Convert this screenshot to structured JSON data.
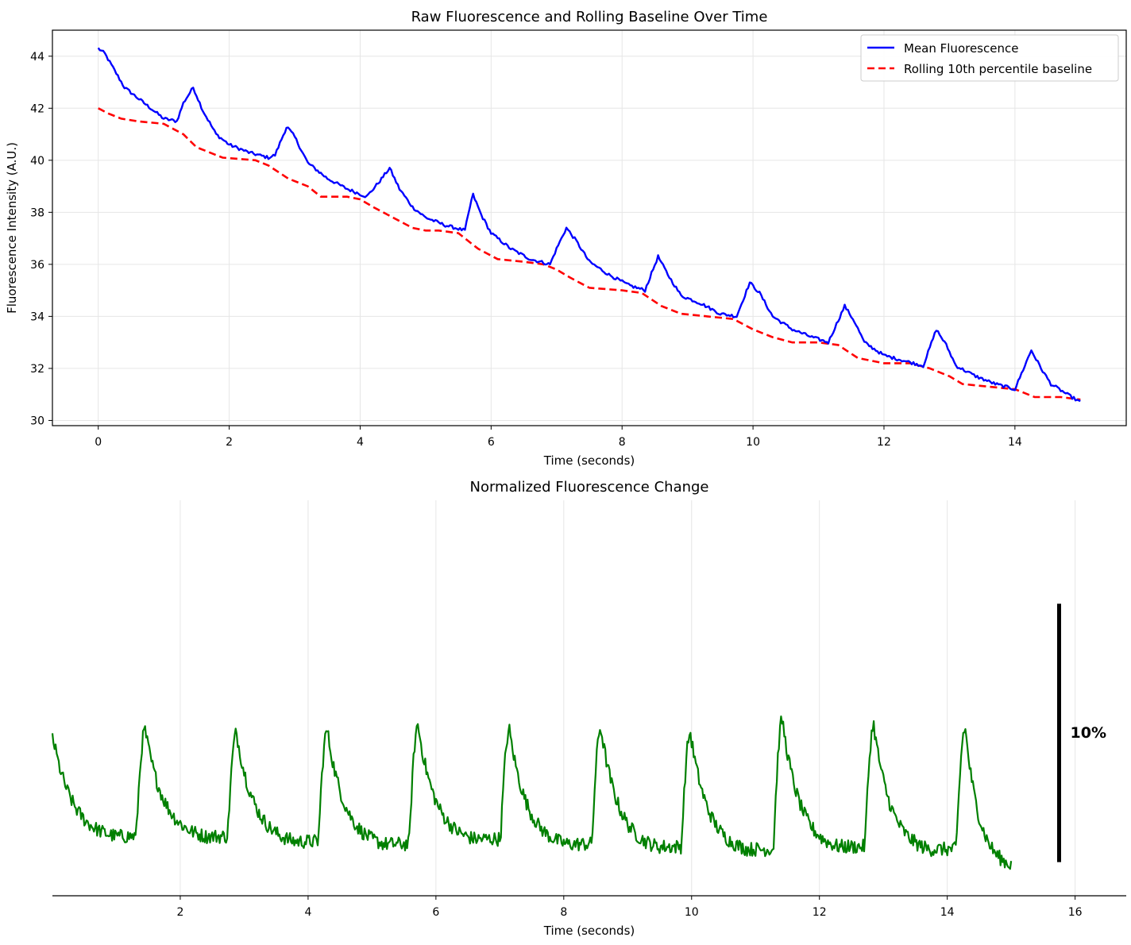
{
  "colors": {
    "mean_fluorescence": "#0000ff",
    "baseline": "#ff0000",
    "normalized": "#008000",
    "grid": "#e6e6e6",
    "axis": "#000000",
    "scale_bar": "#000000"
  },
  "chart_data": [
    {
      "type": "line",
      "title": "Raw Fluorescence and Rolling Baseline Over Time",
      "xlabel": "Time (seconds)",
      "ylabel": "Fluorescence Intensity (A.U.)",
      "xlim": [
        -0.7,
        15.7
      ],
      "ylim": [
        29.8,
        45.0
      ],
      "xticks": [
        0,
        2,
        4,
        6,
        8,
        10,
        12,
        14
      ],
      "yticks": [
        30,
        32,
        34,
        36,
        38,
        40,
        42,
        44
      ],
      "grid": true,
      "legend": "top-right",
      "series": [
        {
          "name": "Mean Fluorescence",
          "style": "solid",
          "x": [
            0.0,
            0.1,
            0.4,
            0.7,
            1.0,
            1.2,
            1.3,
            1.45,
            1.6,
            1.8,
            2.0,
            2.3,
            2.6,
            2.7,
            2.88,
            3.0,
            3.2,
            3.5,
            3.8,
            4.1,
            4.3,
            4.45,
            4.6,
            4.8,
            5.0,
            5.3,
            5.6,
            5.72,
            5.85,
            6.0,
            6.3,
            6.6,
            6.9,
            7.0,
            7.15,
            7.3,
            7.5,
            7.8,
            8.1,
            8.35,
            8.55,
            8.7,
            8.9,
            9.2,
            9.5,
            9.75,
            9.95,
            10.1,
            10.3,
            10.6,
            10.9,
            11.15,
            11.4,
            11.55,
            11.7,
            12.0,
            12.3,
            12.6,
            12.8,
            12.95,
            13.1,
            13.4,
            13.7,
            14.0,
            14.25,
            14.4,
            14.55,
            14.8,
            15.0
          ],
          "values": [
            44.3,
            44.1,
            42.8,
            42.2,
            41.6,
            41.5,
            42.2,
            42.8,
            41.9,
            41.0,
            40.6,
            40.3,
            40.1,
            40.2,
            41.3,
            40.9,
            39.9,
            39.3,
            38.9,
            38.6,
            39.2,
            39.7,
            38.9,
            38.2,
            37.8,
            37.5,
            37.3,
            38.7,
            37.9,
            37.2,
            36.6,
            36.2,
            36.0,
            36.6,
            37.4,
            36.9,
            36.1,
            35.6,
            35.2,
            35.0,
            36.3,
            35.6,
            34.8,
            34.5,
            34.1,
            34.0,
            35.3,
            34.9,
            34.0,
            33.5,
            33.2,
            33.0,
            34.4,
            33.8,
            33.0,
            32.5,
            32.3,
            32.1,
            33.5,
            32.9,
            32.1,
            31.7,
            31.4,
            31.2,
            32.7,
            32.0,
            31.4,
            31.0,
            30.7
          ]
        },
        {
          "name": "Rolling 10th percentile baseline",
          "style": "dashed",
          "x": [
            0.0,
            0.15,
            0.35,
            0.6,
            1.0,
            1.3,
            1.5,
            1.9,
            2.4,
            2.6,
            2.9,
            3.2,
            3.4,
            3.8,
            4.0,
            4.2,
            4.5,
            4.8,
            5.0,
            5.2,
            5.5,
            5.8,
            6.1,
            6.5,
            6.8,
            7.0,
            7.2,
            7.5,
            8.0,
            8.3,
            8.6,
            8.9,
            9.3,
            9.7,
            10.0,
            10.3,
            10.6,
            11.0,
            11.3,
            11.6,
            12.0,
            12.4,
            12.7,
            13.0,
            13.2,
            13.6,
            14.0,
            14.3,
            14.7,
            15.0
          ],
          "values": [
            42.0,
            41.8,
            41.6,
            41.5,
            41.4,
            41.0,
            40.5,
            40.1,
            40.0,
            39.8,
            39.3,
            39.0,
            38.6,
            38.6,
            38.5,
            38.2,
            37.8,
            37.4,
            37.3,
            37.3,
            37.2,
            36.6,
            36.2,
            36.1,
            36.0,
            35.8,
            35.5,
            35.1,
            35.0,
            34.9,
            34.4,
            34.1,
            34.0,
            33.9,
            33.5,
            33.2,
            33.0,
            33.0,
            32.9,
            32.4,
            32.2,
            32.2,
            32.0,
            31.7,
            31.4,
            31.3,
            31.2,
            30.9,
            30.9,
            30.8
          ]
        }
      ]
    },
    {
      "type": "line",
      "title": "Normalized Fluorescence Change",
      "xlabel": "Time (seconds)",
      "ylabel": "",
      "xlim": [
        0.0,
        16.8
      ],
      "ylim": [
        -0.007,
        0.146
      ],
      "xticks": [
        2,
        4,
        6,
        8,
        10,
        12,
        14,
        16
      ],
      "grid": true,
      "grid_axis": "x",
      "y_axis_visible": false,
      "scale_bar": {
        "label": "10%",
        "value": 0.1,
        "x": 15.75,
        "y_start": 0.006
      },
      "series": [
        {
          "name": "",
          "style": "solid",
          "peak_times": [
            0.0,
            1.45,
            2.88,
            4.3,
            5.72,
            7.15,
            8.58,
            9.98,
            11.42,
            12.85,
            14.28
          ],
          "peak_values": [
            0.055,
            0.057,
            0.056,
            0.057,
            0.059,
            0.057,
            0.058,
            0.056,
            0.061,
            0.059,
            0.058
          ],
          "trough_times": [
            1.0,
            2.4,
            3.8,
            5.2,
            6.6,
            8.05,
            9.48,
            10.88,
            12.3,
            13.72,
            15.0
          ],
          "trough_values": [
            0.016,
            0.016,
            0.014,
            0.013,
            0.015,
            0.013,
            0.012,
            0.011,
            0.012,
            0.011,
            0.005
          ]
        }
      ]
    }
  ]
}
